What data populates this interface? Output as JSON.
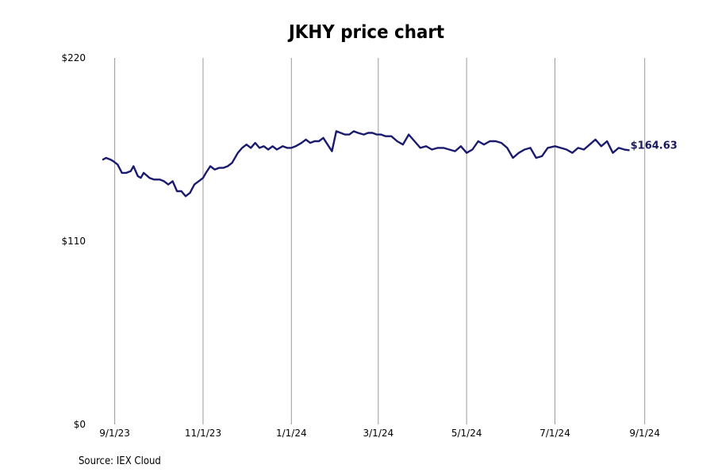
{
  "chart_data": {
    "type": "line",
    "title": "JKHY price chart",
    "source": "Source: IEX Cloud",
    "xlabel": "",
    "ylabel": "",
    "ylim": [
      0,
      220
    ],
    "y_ticks": [
      {
        "value": 0,
        "label": "$0"
      },
      {
        "value": 110,
        "label": "$110"
      },
      {
        "value": 220,
        "label": "$220"
      }
    ],
    "x_ticks": [
      {
        "date": "2023-09-01",
        "label": "9/1/23"
      },
      {
        "date": "2023-11-01",
        "label": "11/1/23"
      },
      {
        "date": "2024-01-01",
        "label": "1/1/24"
      },
      {
        "date": "2024-03-01",
        "label": "3/1/24"
      },
      {
        "date": "2024-05-01",
        "label": "5/1/24"
      },
      {
        "date": "2024-07-01",
        "label": "7/1/24"
      },
      {
        "date": "2024-09-01",
        "label": "9/1/24"
      }
    ],
    "xlim": [
      "2023-08-24",
      "2024-09-05"
    ],
    "grid": "vertical",
    "line_color": "#1a1a6e",
    "last_value_label": "$164.63",
    "series": [
      {
        "x": [
          "2023-08-24",
          "2023-08-26",
          "2023-08-29",
          "2023-08-31",
          "2023-09-03",
          "2023-09-06",
          "2023-09-09",
          "2023-09-12",
          "2023-09-14",
          "2023-09-17",
          "2023-09-19",
          "2023-09-21",
          "2023-09-25",
          "2023-09-28",
          "2023-10-02",
          "2023-10-05",
          "2023-10-08",
          "2023-10-11",
          "2023-10-14",
          "2023-10-17",
          "2023-10-20",
          "2023-10-23",
          "2023-10-26",
          "2023-10-29",
          "2023-11-01",
          "2023-11-03",
          "2023-11-06",
          "2023-11-09",
          "2023-11-12",
          "2023-11-15",
          "2023-11-18",
          "2023-11-21",
          "2023-11-25",
          "2023-11-28",
          "2023-12-01",
          "2023-12-04",
          "2023-12-07",
          "2023-12-10",
          "2023-12-13",
          "2023-12-16",
          "2023-12-19",
          "2023-12-22",
          "2023-12-26",
          "2023-12-29",
          "2024-01-01",
          "2024-01-04",
          "2024-01-08",
          "2024-01-11",
          "2024-01-14",
          "2024-01-17",
          "2024-01-20",
          "2024-01-23",
          "2024-01-26",
          "2024-01-29",
          "2024-02-01",
          "2024-02-04",
          "2024-02-07",
          "2024-02-10",
          "2024-02-13",
          "2024-02-16",
          "2024-02-20",
          "2024-02-23",
          "2024-02-26",
          "2024-02-29",
          "2024-03-03",
          "2024-03-06",
          "2024-03-10",
          "2024-03-14",
          "2024-03-18",
          "2024-03-22",
          "2024-03-26",
          "2024-03-30",
          "2024-04-03",
          "2024-04-07",
          "2024-04-11",
          "2024-04-15",
          "2024-04-19",
          "2024-04-23",
          "2024-04-27",
          "2024-05-01",
          "2024-05-05",
          "2024-05-09",
          "2024-05-13",
          "2024-05-17",
          "2024-05-21",
          "2024-05-25",
          "2024-05-29",
          "2024-06-02",
          "2024-06-06",
          "2024-06-10",
          "2024-06-14",
          "2024-06-18",
          "2024-06-22",
          "2024-06-26",
          "2024-07-01",
          "2024-07-05",
          "2024-07-09",
          "2024-07-13",
          "2024-07-17",
          "2024-07-21",
          "2024-07-25",
          "2024-07-29",
          "2024-08-02",
          "2024-08-06",
          "2024-08-10",
          "2024-08-14",
          "2024-08-18",
          "2024-08-21"
        ],
        "values": [
          159,
          160,
          159,
          158,
          156,
          151,
          151,
          152,
          155,
          149,
          148,
          151,
          148,
          147,
          147,
          146,
          144,
          146,
          140,
          140,
          137,
          139,
          144,
          146,
          148,
          151,
          155,
          153,
          154,
          154,
          155,
          157,
          163,
          166,
          168,
          166,
          169,
          166,
          167,
          165,
          167,
          165,
          167,
          166,
          166,
          167,
          169,
          171,
          169,
          170,
          170,
          172,
          168,
          164,
          176,
          175,
          174,
          174,
          176,
          175,
          174,
          175,
          175,
          174,
          174,
          173,
          173,
          170,
          168,
          174,
          170,
          166,
          167,
          165,
          166,
          166,
          165,
          164,
          167,
          163,
          165,
          170,
          168,
          170,
          170,
          169,
          166,
          160,
          163,
          165,
          166,
          160,
          161,
          166,
          167,
          166,
          165,
          163,
          166,
          165,
          168,
          171,
          167,
          170,
          163,
          166,
          165,
          164.63
        ]
      }
    ]
  }
}
